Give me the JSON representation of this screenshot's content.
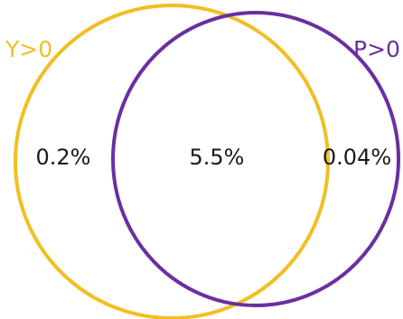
{
  "sets": [
    {
      "name": "Y>0",
      "color": "#F2BE22"
    },
    {
      "name": "P>0",
      "color": "#6B2FA0"
    }
  ],
  "regions": {
    "y_only": "0.2%",
    "intersection": "5.5%",
    "p_only": "0.04%"
  }
}
